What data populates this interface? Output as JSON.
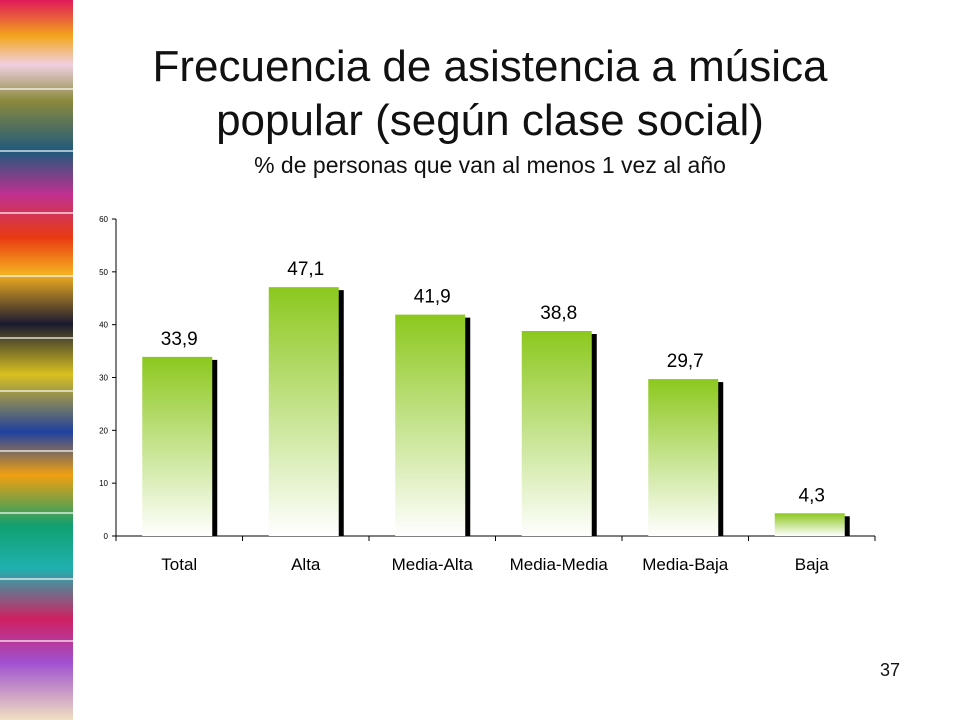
{
  "slide": {
    "title_line1": "Frecuencia de asistencia a música",
    "title_line2": "popular (según clase social)",
    "subtitle": "% de personas que van al menos 1 vez al año",
    "page_number": "37"
  },
  "colors": {
    "bar_top": "#8cc81e",
    "bar_bottom": "#ffffff",
    "bar_shadow": "#000000",
    "axis": "#000000"
  },
  "chart_data": {
    "type": "bar",
    "categories": [
      "Total",
      "Alta",
      "Media-Alta",
      "Media-Media",
      "Media-Baja",
      "Baja"
    ],
    "values": [
      33.9,
      47.1,
      41.9,
      38.8,
      29.7,
      4.3
    ],
    "data_labels": [
      "33,9",
      "47,1",
      "41,9",
      "38,8",
      "29,7",
      "4,3"
    ],
    "ylim": [
      0,
      60
    ],
    "yticks": [
      0,
      10,
      20,
      30,
      40,
      50,
      60
    ],
    "grid": false,
    "legend": "none"
  }
}
